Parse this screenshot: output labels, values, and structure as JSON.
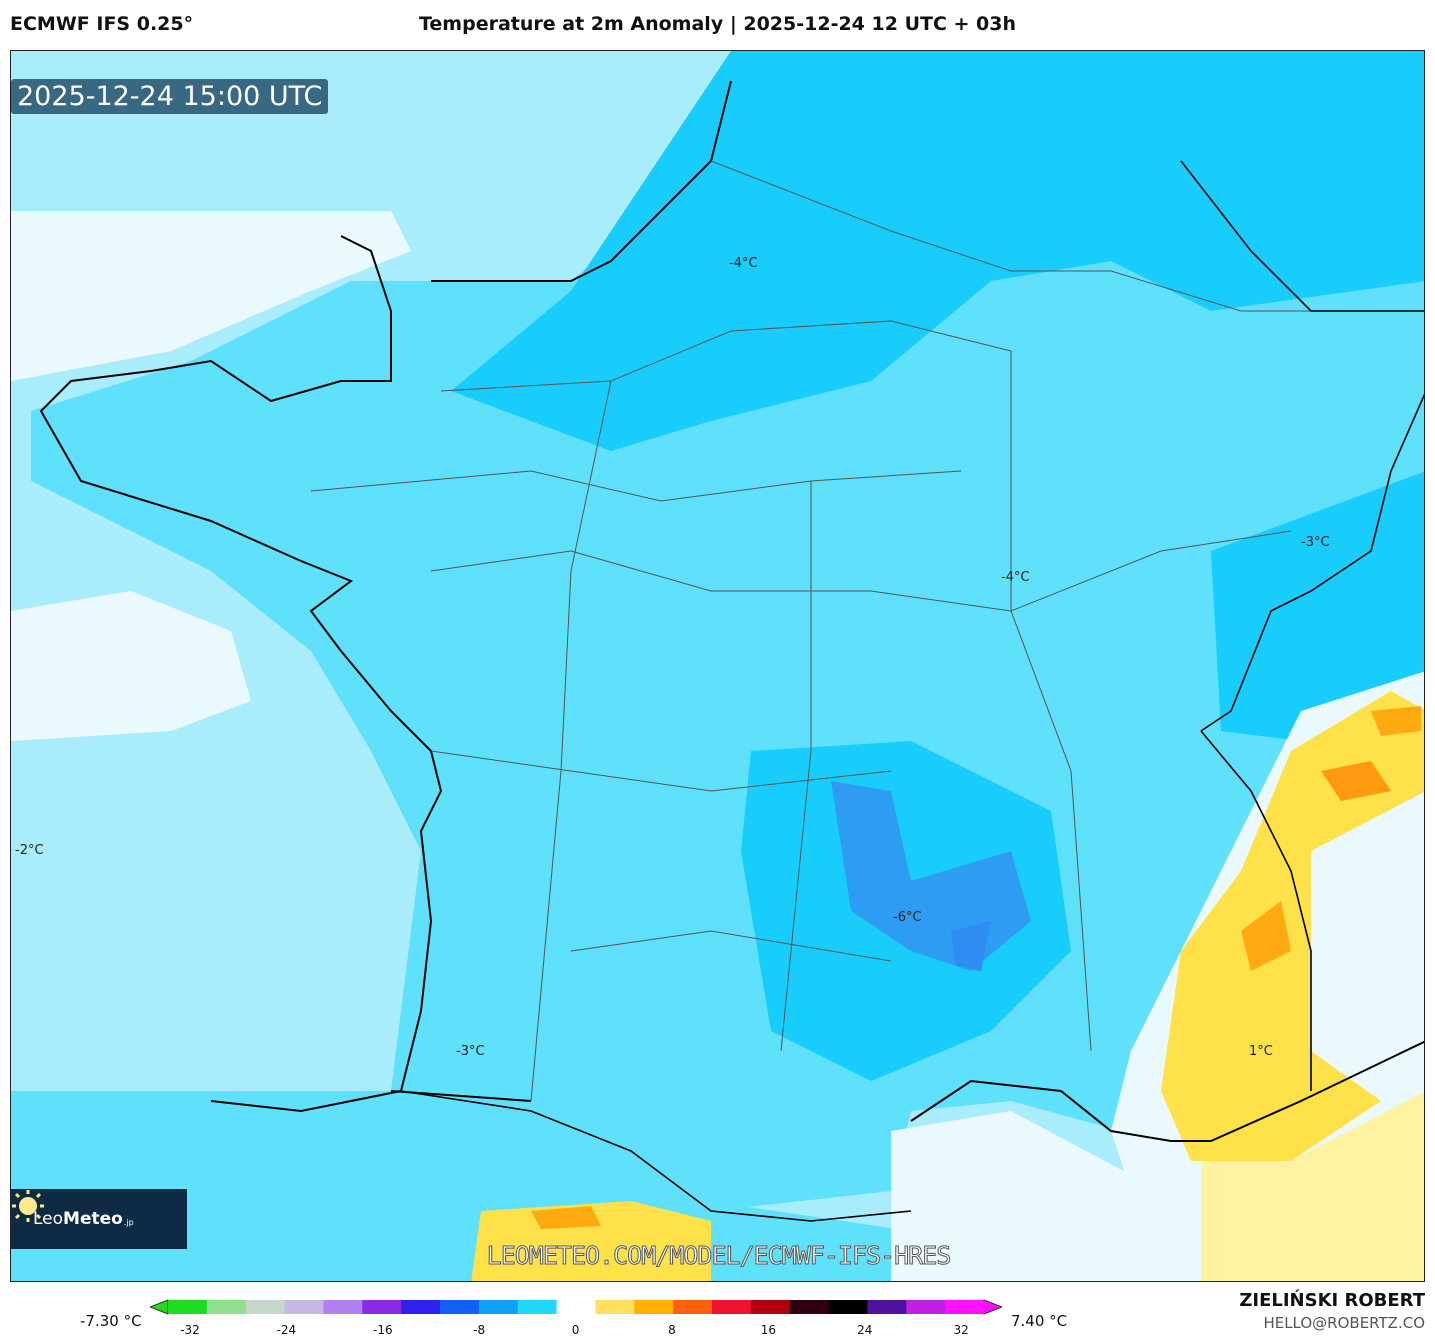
{
  "header": {
    "model": "ECMWF IFS 0.25°",
    "title": "Temperature at 2m Anomaly | 2025-12-24 12 UTC + 03h"
  },
  "map": {
    "timestamp": "2025-12-24 15:00 UTC",
    "logo": {
      "name_light": "Leo",
      "name_bold": "Meteo",
      "suffix": ".jp"
    },
    "watermark_url": "LEOMETEO.COM/MODEL/ECMWF-IFS-HRES",
    "contour_labels": [
      "-4°C",
      "-3°C",
      "-4°C",
      "-2°C",
      "-6°C",
      "-3°C",
      "1°C"
    ],
    "colors": {
      "sea_light": "#a9ecfb",
      "land_mid": "#5fe0fb",
      "land_cold": "#18cdfb",
      "cold_deep": "#2e8cf2",
      "near_zero": "#e9f9fd",
      "warm_yellow": "#ffe14a",
      "warm_orange": "#ffaa10"
    }
  },
  "colorbar": {
    "min_label": "-7.30 °C",
    "max_label": "7.40 °C",
    "ticks": [
      "-32",
      "-24",
      "-16",
      "-8",
      "0",
      "8",
      "16",
      "24",
      "32"
    ],
    "colors": [
      "#1fdc1f",
      "#8fe08f",
      "#c8d8c8",
      "#c8b8e8",
      "#b080f0",
      "#8a2be2",
      "#3020f0",
      "#1060f8",
      "#10a0fa",
      "#20d8fa",
      "#ffffff",
      "#ffe060",
      "#ffb000",
      "#ff6010",
      "#f01030",
      "#b00010",
      "#300010",
      "#000000",
      "#5010a0",
      "#c020e0",
      "#ff10ff"
    ]
  },
  "footer": {
    "author": "ZIELIŃSKI ROBERT",
    "email": "HELLO@ROBERTZ.CO"
  }
}
